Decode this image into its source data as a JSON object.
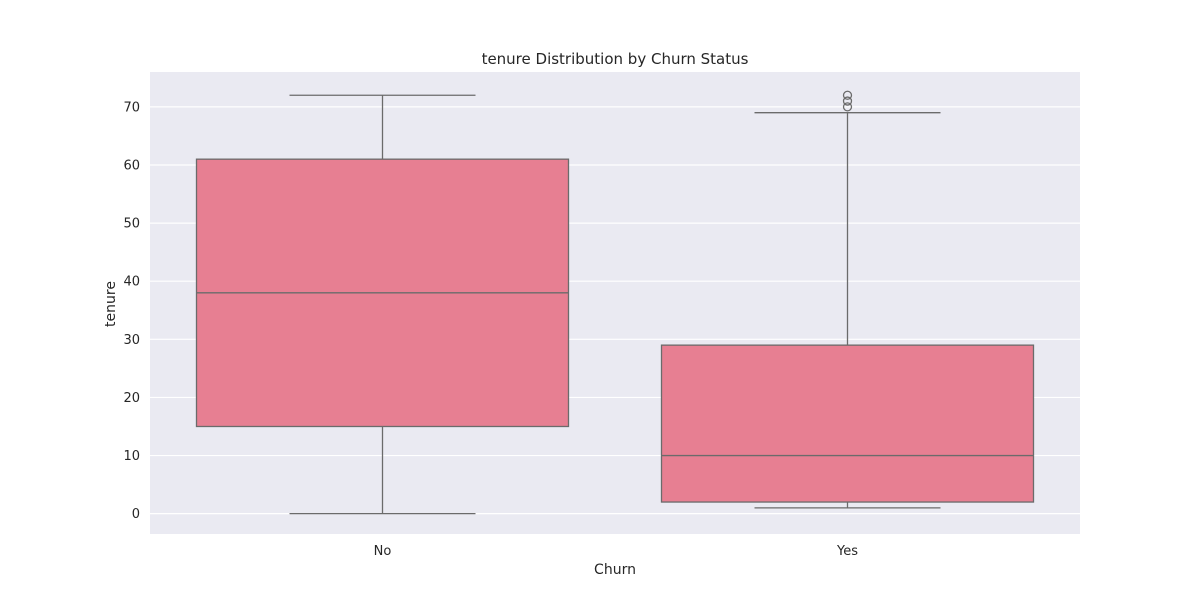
{
  "chart_data": {
    "type": "box",
    "title": "tenure Distribution by Churn Status",
    "xlabel": "Churn",
    "ylabel": "tenure",
    "ylim": [
      -3.5,
      76
    ],
    "yticks": [
      0,
      10,
      20,
      30,
      40,
      50,
      60,
      70
    ],
    "grid": true,
    "categories": [
      "No",
      "Yes"
    ],
    "boxes": [
      {
        "category": "No",
        "whisker_low": 0,
        "q1": 15,
        "median": 38,
        "q3": 61,
        "whisker_high": 72,
        "outliers": []
      },
      {
        "category": "Yes",
        "whisker_low": 1,
        "q1": 2,
        "median": 10,
        "q3": 29,
        "whisker_high": 69,
        "outliers": [
          70,
          71,
          72
        ]
      }
    ]
  },
  "colors": {
    "background": "#eaeaf2",
    "grid": "#ffffff",
    "box_fill": "#e77f92",
    "line": "#6b6b6b"
  }
}
